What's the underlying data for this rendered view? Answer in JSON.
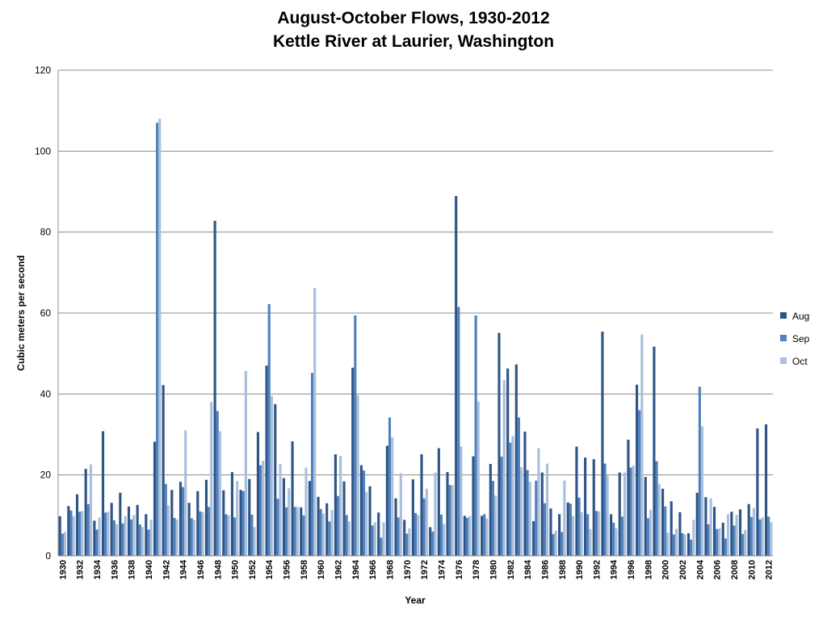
{
  "chart_data": {
    "type": "bar",
    "title_line1": "August-October Flows, 1930-2012",
    "title_line2": "Kettle River at Laurier, Washington",
    "xlabel": "Year",
    "ylabel": "Cubic meters per second",
    "ylim": [
      0,
      120
    ],
    "yticks": [
      0,
      20,
      40,
      60,
      80,
      100,
      120
    ],
    "grid": true,
    "legend_position": "right",
    "colors": {
      "Aug": "#2f5586",
      "Sep": "#4f81bd",
      "Oct": "#a9bfdc"
    },
    "categories": [
      1930,
      1931,
      1932,
      1933,
      1934,
      1935,
      1936,
      1937,
      1938,
      1939,
      1940,
      1941,
      1942,
      1943,
      1944,
      1945,
      1946,
      1947,
      1948,
      1949,
      1950,
      1951,
      1952,
      1953,
      1954,
      1955,
      1956,
      1957,
      1958,
      1959,
      1960,
      1961,
      1962,
      1963,
      1964,
      1965,
      1966,
      1967,
      1968,
      1969,
      1970,
      1971,
      1972,
      1973,
      1974,
      1975,
      1976,
      1977,
      1978,
      1979,
      1980,
      1981,
      1982,
      1983,
      1984,
      1985,
      1986,
      1987,
      1988,
      1989,
      1990,
      1991,
      1992,
      1993,
      1994,
      1995,
      1996,
      1997,
      1998,
      1999,
      2000,
      2001,
      2002,
      2003,
      2004,
      2005,
      2006,
      2007,
      2008,
      2009,
      2010,
      2011,
      2012
    ],
    "xtick_labels": [
      "1930",
      "1932",
      "1934",
      "1936",
      "1938",
      "1940",
      "1942",
      "1944",
      "1946",
      "1948",
      "1950",
      "1952",
      "1954",
      "1956",
      "1958",
      "1960",
      "1962",
      "1964",
      "1966",
      "1968",
      "1970",
      "1972",
      "1974",
      "1976",
      "1978",
      "1980",
      "1982",
      "1984",
      "1986",
      "1988",
      "1990",
      "1992",
      "1994",
      "1996",
      "1998",
      "2000",
      "2002",
      "2004",
      "2006",
      "2008",
      "2010",
      "2012"
    ],
    "series": [
      {
        "name": "Aug",
        "values": [
          9.8,
          12.3,
          15.2,
          21.5,
          8.7,
          30.8,
          13.1,
          15.6,
          12.2,
          12.6,
          10.3,
          28.2,
          42.2,
          16.3,
          18.3,
          13.1,
          16.0,
          18.8,
          82.8,
          16.2,
          20.7,
          16.3,
          19.0,
          30.6,
          47.0,
          37.5,
          19.2,
          28.3,
          12.0,
          18.5,
          14.6,
          13.0,
          25.1,
          18.4,
          46.5,
          22.4,
          17.2,
          10.7,
          27.2,
          14.2,
          8.9,
          18.9,
          25.1,
          7.1,
          26.6,
          20.7,
          88.9,
          9.9,
          24.6,
          9.9,
          22.7,
          55.1,
          46.3,
          47.3,
          30.7,
          8.6,
          20.6,
          11.7,
          10.3,
          13.2,
          27.0,
          24.3,
          23.9,
          55.4,
          10.3,
          20.6,
          28.7,
          42.3,
          19.5,
          51.7,
          16.6,
          13.5,
          10.8,
          5.6,
          15.6,
          14.5,
          12.1,
          8.2,
          10.9,
          11.5,
          12.8,
          31.5,
          32.5
        ]
      },
      {
        "name": "Sep",
        "values": [
          5.5,
          11.2,
          10.9,
          12.8,
          6.5,
          10.7,
          8.8,
          8.0,
          9.0,
          7.8,
          6.5,
          107.0,
          17.8,
          9.4,
          17.0,
          9.3,
          11.0,
          12.1,
          35.8,
          10.3,
          9.5,
          16.0,
          10.2,
          22.4,
          62.2,
          14.1,
          12.0,
          12.1,
          10.0,
          45.2,
          11.6,
          8.5,
          14.8,
          10.1,
          59.4,
          21.1,
          7.5,
          4.5,
          34.2,
          9.5,
          5.5,
          10.6,
          14.2,
          6.0,
          10.2,
          17.5,
          61.5,
          9.4,
          59.4,
          10.3,
          18.5,
          24.5,
          28.0,
          34.2,
          21.2,
          18.6,
          13.0,
          5.4,
          5.9,
          12.9,
          14.4,
          10.3,
          11.1,
          22.8,
          8.2,
          9.7,
          21.8,
          36.0,
          9.3,
          23.4,
          12.2,
          5.3,
          5.6,
          4.0,
          41.8,
          7.8,
          6.6,
          4.3,
          7.5,
          5.4,
          9.6,
          9.0,
          9.7
        ]
      },
      {
        "name": "Oct",
        "values": [
          5.9,
          9.8,
          11.1,
          22.6,
          9.5,
          10.9,
          7.8,
          9.8,
          10.1,
          7.1,
          8.9,
          108.0,
          12.5,
          9.0,
          31.0,
          8.9,
          10.8,
          38.0,
          30.8,
          10.0,
          18.5,
          45.7,
          7.1,
          23.5,
          39.5,
          22.7,
          16.7,
          12.1,
          21.8,
          66.2,
          10.5,
          11.3,
          24.7,
          8.5,
          39.7,
          15.8,
          8.3,
          8.3,
          29.3,
          20.4,
          6.8,
          10.1,
          16.6,
          20.6,
          7.9,
          17.5,
          27.0,
          9.8,
          38.1,
          9.2,
          14.9,
          43.4,
          29.6,
          21.9,
          18.3,
          26.6,
          22.8,
          6.2,
          18.6,
          9.8,
          10.8,
          6.6,
          11.0,
          20.0,
          6.8,
          20.6,
          22.3,
          54.7,
          11.4,
          17.8,
          5.7,
          6.7,
          5.3,
          8.9,
          32.0,
          14.2,
          6.8,
          10.3,
          10.1,
          6.4,
          11.8,
          9.5,
          8.3
        ]
      }
    ]
  }
}
